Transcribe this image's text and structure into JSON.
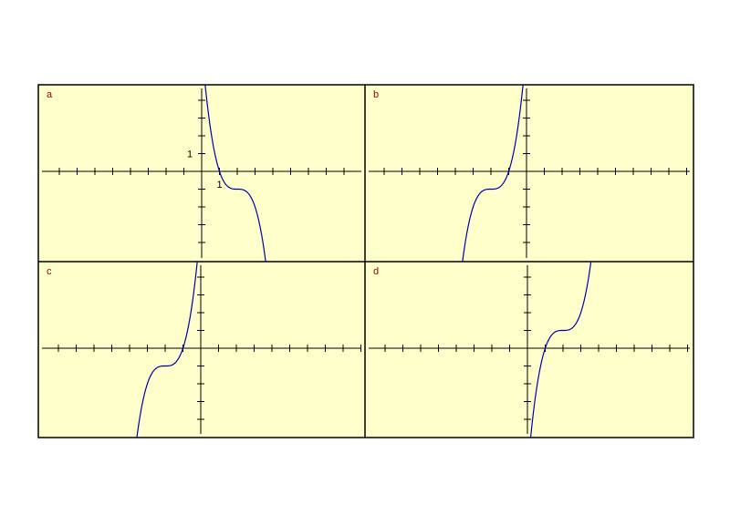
{
  "panels": [
    {
      "label": "a",
      "x_unit_label": "1",
      "y_unit_label": "1"
    },
    {
      "label": "b"
    },
    {
      "label": "c"
    },
    {
      "label": "d"
    }
  ]
}
